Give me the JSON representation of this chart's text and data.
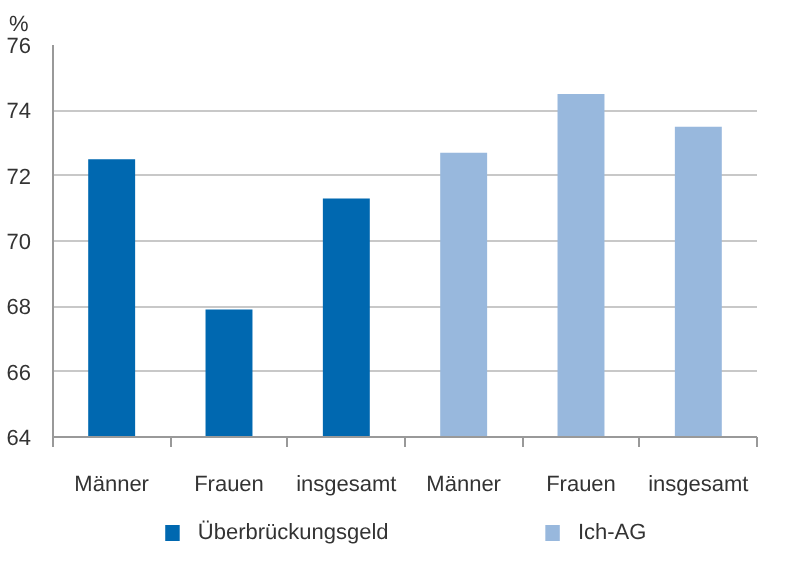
{
  "chart_data": {
    "type": "bar",
    "ylabel": "%",
    "categories": [
      "Männer",
      "Frauen",
      "insgesamt",
      "Männer",
      "Frauen",
      "insgesamt"
    ],
    "series": [
      {
        "name": "Überbrückungsgeld",
        "color": "#0068b0",
        "values": [
          72.5,
          67.9,
          71.3,
          null,
          null,
          null
        ]
      },
      {
        "name": "Ich-AG",
        "color": "#98b8dd",
        "values": [
          null,
          null,
          null,
          72.7,
          74.5,
          73.5
        ]
      }
    ],
    "ylim": [
      64,
      76
    ],
    "yticks": [
      64,
      66,
      68,
      70,
      72,
      74,
      76
    ],
    "grid": "y",
    "legend": "bottom"
  }
}
